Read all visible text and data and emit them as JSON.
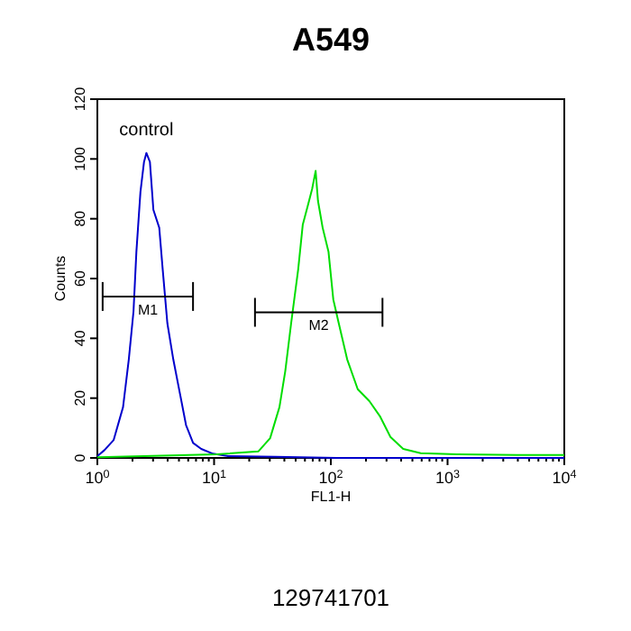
{
  "chart_data": {
    "type": "line",
    "title": "A549",
    "xlabel": "FL1-H",
    "ylabel": "Counts",
    "log": "x",
    "xlim": [
      1,
      10000
    ],
    "ylim": [
      0,
      120
    ],
    "yticks": [
      0,
      20,
      40,
      60,
      80,
      100,
      120
    ],
    "xticks": [
      {
        "value": 1,
        "label": "10$^{0}$"
      },
      {
        "value": 2,
        "label": null
      },
      {
        "value": 3,
        "label": null
      },
      {
        "value": 4,
        "label": null
      },
      {
        "value": 5,
        "label": null
      },
      {
        "value": 6,
        "label": null
      },
      {
        "value": 7,
        "label": null
      },
      {
        "value": 8,
        "label": null
      },
      {
        "value": 9,
        "label": null
      },
      {
        "value": 10,
        "label": "10$^{1}$"
      },
      {
        "value": 20,
        "label": null
      },
      {
        "value": 30,
        "label": null
      },
      {
        "value": 40,
        "label": null
      },
      {
        "value": 50,
        "label": null
      },
      {
        "value": 60,
        "label": null
      },
      {
        "value": 70,
        "label": null
      },
      {
        "value": 80,
        "label": null
      },
      {
        "value": 90,
        "label": null
      },
      {
        "value": 100,
        "label": "10$^{2}$"
      },
      {
        "value": 200,
        "label": null
      },
      {
        "value": 300,
        "label": null
      },
      {
        "value": 400,
        "label": null
      },
      {
        "value": 500,
        "label": null
      },
      {
        "value": 600,
        "label": null
      },
      {
        "value": 700,
        "label": null
      },
      {
        "value": 800,
        "label": null
      },
      {
        "value": 900,
        "label": null
      },
      {
        "value": 1000,
        "label": "10$^{3}$"
      },
      {
        "value": 2000,
        "label": null
      },
      {
        "value": 3000,
        "label": null
      },
      {
        "value": 4000,
        "label": null
      },
      {
        "value": 5000,
        "label": null
      },
      {
        "value": 6000,
        "label": null
      },
      {
        "value": 7000,
        "label": null
      },
      {
        "value": 8000,
        "label": null
      },
      {
        "value": 9000,
        "label": null
      },
      {
        "value": 10000,
        "label": "10$^{4}$"
      }
    ],
    "series": [
      {
        "name": "control",
        "color": "#0000cc",
        "x": [
          1,
          1.15,
          1.38,
          1.66,
          1.86,
          2.04,
          2.16,
          2.34,
          2.51,
          2.63,
          2.82,
          3.02,
          3.39,
          3.63,
          3.98,
          4.47,
          5.13,
          5.75,
          6.61,
          7.76,
          9.77,
          13.2,
          33.9,
          112,
          10000
        ],
        "values": [
          0.6,
          2.6,
          6,
          17,
          33,
          49,
          69,
          89,
          99,
          102,
          99,
          83,
          77,
          63,
          45,
          33,
          21,
          11,
          5,
          3,
          1.4,
          0.6,
          0.4,
          0,
          0
        ]
      },
      {
        "color": "#00dd00",
        "x": [
          1,
          10.5,
          24,
          30.2,
          36.3,
          40.7,
          45.7,
          52.5,
          57.5,
          63.1,
          69.2,
          74.1,
          77.6,
          85.1,
          95.5,
          105,
          117,
          138,
          170,
          214,
          263,
          324,
          417,
          589,
          1202,
          3890,
          10000
        ],
        "values": [
          0.2,
          1.2,
          2.2,
          6.6,
          17,
          29,
          45,
          63,
          78,
          84,
          90,
          96,
          86,
          77,
          69,
          53,
          45,
          33,
          23,
          19,
          14,
          7,
          3,
          1.6,
          1.2,
          1,
          1
        ]
      },
      {
        "name": "M1",
        "color": "#000000",
        "x": [
          1.11,
          6.6
        ],
        "values": [
          54,
          54
        ]
      },
      {
        "name": "M2",
        "color": "#000000",
        "x": [
          22.4,
          277
        ],
        "values": [
          48.7,
          48.7
        ]
      }
    ],
    "annotations": [
      "129741701"
    ]
  }
}
